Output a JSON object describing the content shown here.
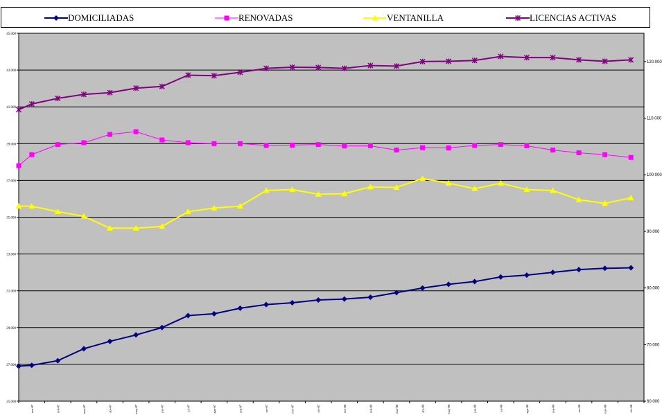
{
  "chart_data": {
    "type": "line",
    "categories": [
      "ene-07",
      "feb-07",
      "mar-07",
      "abr-07",
      "may-07",
      "jun-07",
      "jul-07",
      "ago-07",
      "sep-07",
      "oct-07",
      "nov-07",
      "dic-07",
      "ene-08",
      "feb-08",
      "mar-08",
      "abr-08",
      "may-08",
      "jun-08",
      "jul-08",
      "ago-08",
      "sep-08",
      "oct-08",
      "nov-08",
      "dic-08"
    ],
    "category_labels": [
      "ene-07",
      "feb-07",
      "mar-07",
      "abr-07",
      "may-07",
      "jun-07",
      "jul-07",
      "ago-07",
      "sep-07",
      "oct-07",
      "nov-07",
      "dic-07",
      "ene-08",
      "feb-08",
      "mar-08",
      "abr-08",
      "may-08",
      "jun-08",
      "jul-08",
      "ago-08",
      "sep-08",
      "oct-08",
      "nov-08",
      "dic-08"
    ],
    "y_left": {
      "ylim": [
        25000,
        45000
      ],
      "ticks": [
        "25.000",
        "27.000",
        "29.000",
        "31.000",
        "33.000",
        "35.000",
        "37.000",
        "39.000",
        "41.000",
        "43.000",
        "45.000"
      ]
    },
    "y_right": {
      "ylim": [
        60000,
        125000
      ],
      "ticks": [
        "60.000",
        "70.000",
        "80.000",
        "90.000",
        "100.000",
        "110.000",
        "120.000"
      ]
    },
    "grid": true,
    "legend_position": "top",
    "plot_background": "#c0c0c0",
    "series": [
      {
        "name": "DOMICILIADAS",
        "axis": "left",
        "color": "#000080",
        "marker": "diamond",
        "start": 26900,
        "values": [
          26950,
          27200,
          27850,
          28250,
          28600,
          29000,
          29650,
          29750,
          30050,
          30250,
          30350,
          30500,
          30550,
          30650,
          30900,
          31150,
          31350,
          31500,
          31750,
          31850,
          32000,
          32150,
          32220,
          32250
        ]
      },
      {
        "name": "RENOVADAS",
        "axis": "left",
        "color": "#ff00ff",
        "marker": "square",
        "start": 37800,
        "values": [
          38400,
          38950,
          39050,
          39500,
          39650,
          39200,
          39050,
          39000,
          39000,
          38900,
          38920,
          38950,
          38870,
          38880,
          38650,
          38780,
          38770,
          38900,
          38950,
          38880,
          38650,
          38500,
          38400,
          38250
        ]
      },
      {
        "name": "VENTANILLA",
        "axis": "left",
        "color": "#ffff00",
        "marker": "triangle",
        "start": 35600,
        "values": [
          35600,
          35300,
          35050,
          34400,
          34400,
          34500,
          35300,
          35500,
          35600,
          36450,
          36500,
          36250,
          36280,
          36650,
          36620,
          37100,
          36850,
          36550,
          36850,
          36500,
          36450,
          35950,
          35750,
          36050
        ]
      },
      {
        "name": "LICENCIAS ACTIVAS",
        "axis": "right",
        "color": "#800080",
        "marker": "star",
        "start": 111500,
        "values": [
          112500,
          113500,
          114200,
          114500,
          115300,
          115600,
          117600,
          117500,
          118100,
          118800,
          119000,
          118950,
          118800,
          119300,
          119200,
          120000,
          120050,
          120200,
          120900,
          120700,
          120700,
          120300,
          120050,
          120300
        ]
      }
    ]
  }
}
